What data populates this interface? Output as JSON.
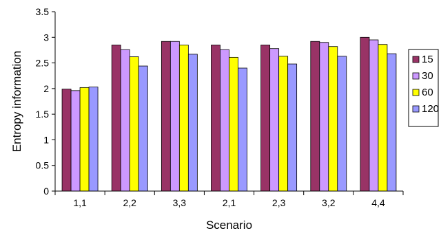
{
  "chart_data": {
    "type": "bar",
    "xlabel": "Scenario",
    "ylabel": "Entropy information",
    "ylim": [
      0,
      3.5
    ],
    "yticks": [
      "0",
      "0.5",
      "1",
      "1.5",
      "2",
      "2.5",
      "3",
      "3.5"
    ],
    "grid": false,
    "legend_position": "right",
    "categories": [
      "1,1",
      "2,2",
      "3,3",
      "2,1",
      "2,3",
      "3,2",
      "4,4"
    ],
    "series": [
      {
        "name": "15",
        "color": "#993366",
        "values": [
          1.99,
          2.85,
          2.92,
          2.85,
          2.85,
          2.92,
          3.0
        ]
      },
      {
        "name": "30",
        "color": "#CC99FF",
        "values": [
          1.96,
          2.76,
          2.92,
          2.76,
          2.78,
          2.9,
          2.95
        ]
      },
      {
        "name": "60",
        "color": "#FFFF00",
        "values": [
          2.02,
          2.62,
          2.85,
          2.61,
          2.63,
          2.82,
          2.86
        ]
      },
      {
        "name": "120",
        "color": "#9999FF",
        "values": [
          2.03,
          2.44,
          2.67,
          2.4,
          2.48,
          2.63,
          2.68
        ]
      }
    ]
  }
}
